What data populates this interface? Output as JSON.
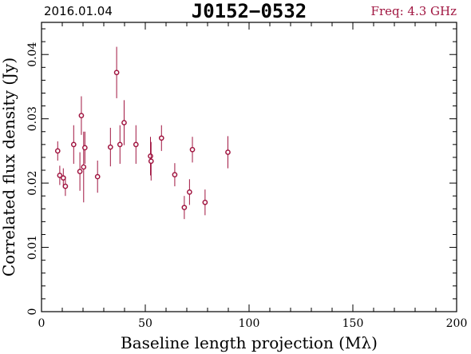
{
  "header": {
    "date": "2016.01.04",
    "title": "J0152−0532",
    "freq": "Freq: 4.3 GHz"
  },
  "colors": {
    "marker": "#a01540",
    "frame": "#000000"
  },
  "chart_data": {
    "type": "scatter",
    "xlabel": "Baseline length projection (Mλ)",
    "ylabel": "Correlated flux density (Jy)",
    "xlim": [
      0,
      200
    ],
    "ylim": [
      0,
      0.045
    ],
    "xticks": [
      0,
      50,
      100,
      150,
      200
    ],
    "yticks": [
      0,
      0.01,
      0.02,
      0.03,
      0.04
    ],
    "xtick_labels": [
      "0",
      "50",
      "100",
      "150",
      "200"
    ],
    "ytick_labels": [
      "0",
      "0.01",
      "0.02",
      "0.03",
      "0.04"
    ],
    "grid": false,
    "points": [
      {
        "x": 7.8,
        "y": 0.025,
        "err": 0.0015
      },
      {
        "x": 8.8,
        "y": 0.0212,
        "err": 0.0015
      },
      {
        "x": 10.5,
        "y": 0.0208,
        "err": 0.0015
      },
      {
        "x": 11.5,
        "y": 0.0195,
        "err": 0.0015
      },
      {
        "x": 15.5,
        "y": 0.026,
        "err": 0.003
      },
      {
        "x": 18.5,
        "y": 0.0218,
        "err": 0.003
      },
      {
        "x": 19.2,
        "y": 0.0305,
        "err": 0.003
      },
      {
        "x": 20.3,
        "y": 0.0225,
        "err": 0.0055
      },
      {
        "x": 20.9,
        "y": 0.0255,
        "err": 0.0025
      },
      {
        "x": 27.0,
        "y": 0.021,
        "err": 0.0025
      },
      {
        "x": 33.2,
        "y": 0.0256,
        "err": 0.003
      },
      {
        "x": 36.2,
        "y": 0.0372,
        "err": 0.004
      },
      {
        "x": 37.8,
        "y": 0.026,
        "err": 0.003
      },
      {
        "x": 39.8,
        "y": 0.0294,
        "err": 0.0035
      },
      {
        "x": 45.5,
        "y": 0.026,
        "err": 0.003
      },
      {
        "x": 52.5,
        "y": 0.0242,
        "err": 0.003
      },
      {
        "x": 52.8,
        "y": 0.0234,
        "err": 0.003
      },
      {
        "x": 57.8,
        "y": 0.027,
        "err": 0.002
      },
      {
        "x": 64.2,
        "y": 0.0213,
        "err": 0.0018
      },
      {
        "x": 68.8,
        "y": 0.0162,
        "err": 0.0018
      },
      {
        "x": 71.3,
        "y": 0.0186,
        "err": 0.002
      },
      {
        "x": 72.7,
        "y": 0.0252,
        "err": 0.002
      },
      {
        "x": 78.8,
        "y": 0.017,
        "err": 0.002
      },
      {
        "x": 89.8,
        "y": 0.0248,
        "err": 0.0025
      }
    ]
  }
}
